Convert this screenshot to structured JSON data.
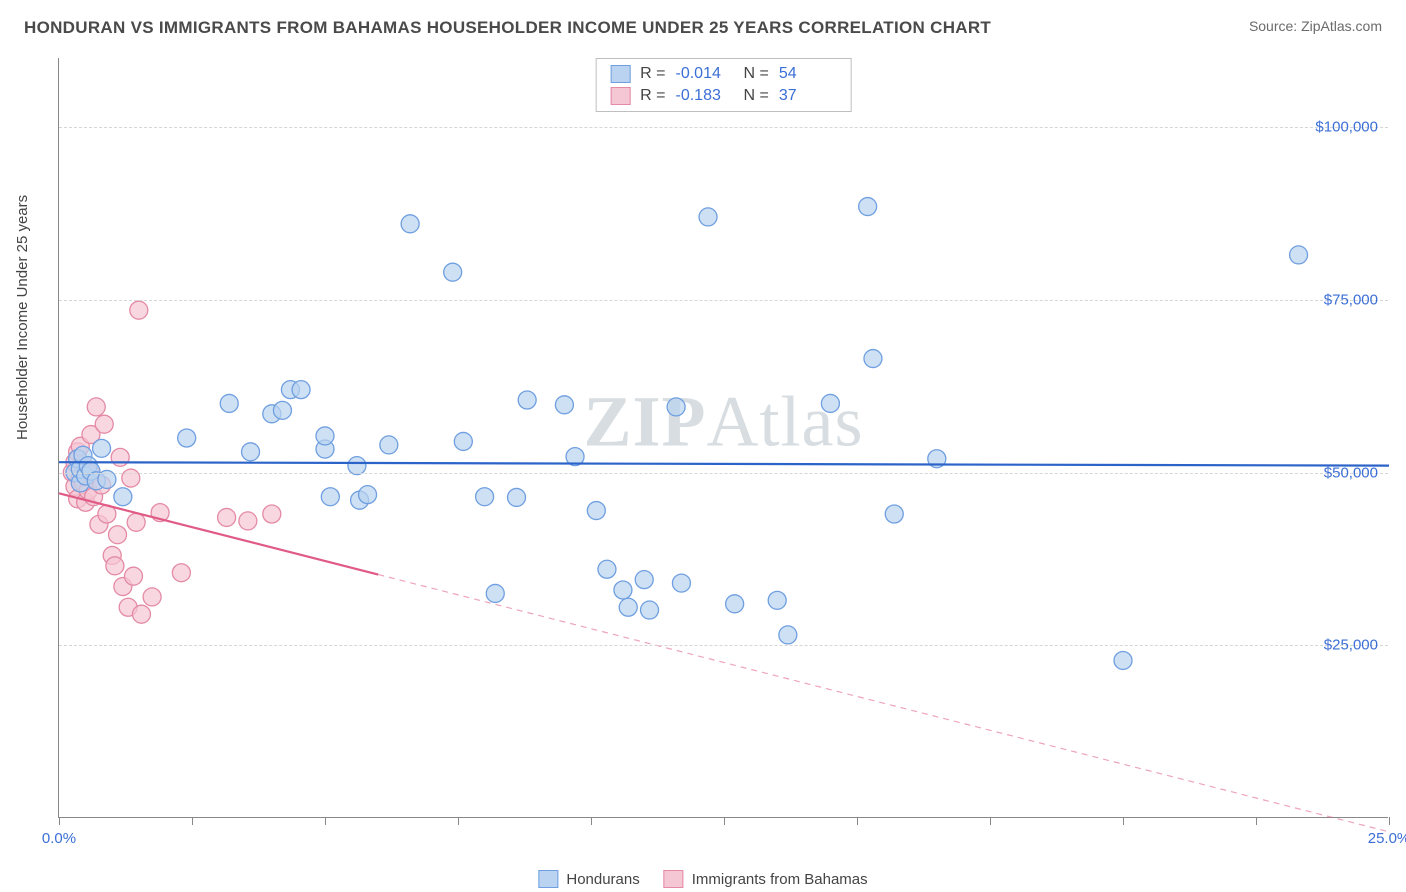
{
  "header": {
    "title": "HONDURAN VS IMMIGRANTS FROM BAHAMAS HOUSEHOLDER INCOME UNDER 25 YEARS CORRELATION CHART",
    "source": "Source: ZipAtlas.com"
  },
  "watermark": {
    "zip": "ZIP",
    "atlas": "Atlas"
  },
  "chart": {
    "type": "scatter",
    "background_color": "#ffffff",
    "grid_color": "#d6d6d6",
    "axis_color": "#888888",
    "ylabel": "Householder Income Under 25 years",
    "ylabel_fontsize": 15,
    "ylabel_color": "#444444",
    "xlim": [
      0,
      25
    ],
    "ylim": [
      0,
      110000
    ],
    "yticks": [
      {
        "v": 25000,
        "label": "$25,000"
      },
      {
        "v": 50000,
        "label": "$50,000"
      },
      {
        "v": 75000,
        "label": "$75,000"
      },
      {
        "v": 100000,
        "label": "$100,000"
      }
    ],
    "xticks": [
      0,
      2.5,
      5,
      7.5,
      10,
      12.5,
      15,
      17.5,
      20,
      22.5,
      25
    ],
    "xtick_labels": [
      {
        "v": 0,
        "label": "0.0%"
      },
      {
        "v": 25,
        "label": "25.0%"
      }
    ],
    "tick_label_color": "#3b6fd6",
    "series": [
      {
        "name": "Hondurans",
        "fill_color": "#b9d3f0",
        "stroke_color": "#6f9fe0",
        "line_color": "#2b63c9",
        "marker_radius": 9,
        "marker_opacity": 0.7,
        "R": "-0.014",
        "N": "54",
        "trend": {
          "x1": 0,
          "y1": 51500,
          "x2": 25,
          "y2": 51000,
          "dashed": false,
          "width": 2.2
        },
        "points": [
          [
            0.3,
            50000
          ],
          [
            0.35,
            52000
          ],
          [
            0.4,
            48500
          ],
          [
            0.4,
            50500
          ],
          [
            0.45,
            52500
          ],
          [
            0.5,
            49500
          ],
          [
            0.55,
            51000
          ],
          [
            0.6,
            50200
          ],
          [
            0.7,
            48800
          ],
          [
            0.8,
            53500
          ],
          [
            0.9,
            49000
          ],
          [
            1.2,
            46500
          ],
          [
            2.4,
            55000
          ],
          [
            3.2,
            60000
          ],
          [
            3.6,
            53000
          ],
          [
            4.0,
            58500
          ],
          [
            4.2,
            59000
          ],
          [
            4.35,
            62000
          ],
          [
            4.55,
            62000
          ],
          [
            5.0,
            53400
          ],
          [
            5.0,
            55300
          ],
          [
            5.1,
            46500
          ],
          [
            5.6,
            51000
          ],
          [
            5.65,
            46000
          ],
          [
            5.8,
            46800
          ],
          [
            6.2,
            54000
          ],
          [
            6.6,
            86000
          ],
          [
            7.4,
            79000
          ],
          [
            7.6,
            54500
          ],
          [
            8.0,
            46500
          ],
          [
            8.2,
            32500
          ],
          [
            8.6,
            46400
          ],
          [
            8.8,
            60500
          ],
          [
            9.5,
            59800
          ],
          [
            9.7,
            52300
          ],
          [
            10.1,
            44500
          ],
          [
            10.3,
            36000
          ],
          [
            10.6,
            33000
          ],
          [
            10.7,
            30500
          ],
          [
            11.0,
            34500
          ],
          [
            11.1,
            30100
          ],
          [
            11.6,
            59500
          ],
          [
            11.7,
            34000
          ],
          [
            12.2,
            87000
          ],
          [
            12.7,
            31000
          ],
          [
            13.5,
            31500
          ],
          [
            13.7,
            26500
          ],
          [
            14.5,
            60000
          ],
          [
            15.2,
            88500
          ],
          [
            15.3,
            66500
          ],
          [
            15.7,
            44000
          ],
          [
            16.5,
            52000
          ],
          [
            20.0,
            22800
          ],
          [
            23.3,
            81500
          ]
        ]
      },
      {
        "name": "Immigrants from Bahamas",
        "fill_color": "#f5c6d3",
        "stroke_color": "#e48aa5",
        "line_color": "#e05a86",
        "marker_radius": 9,
        "marker_opacity": 0.7,
        "R": "-0.183",
        "N": "37",
        "trend": {
          "x1": 0,
          "y1": 47000,
          "x2": 25,
          "y2": -2000,
          "dashed_after_x": 6.0,
          "width": 2.2
        },
        "points": [
          [
            0.25,
            50000
          ],
          [
            0.3,
            51500
          ],
          [
            0.3,
            48000
          ],
          [
            0.35,
            53000
          ],
          [
            0.35,
            46200
          ],
          [
            0.4,
            49300
          ],
          [
            0.4,
            53800
          ],
          [
            0.45,
            48600
          ],
          [
            0.45,
            51100
          ],
          [
            0.5,
            45700
          ],
          [
            0.5,
            50400
          ],
          [
            0.55,
            47400
          ],
          [
            0.6,
            49800
          ],
          [
            0.6,
            55500
          ],
          [
            0.65,
            46500
          ],
          [
            0.7,
            59500
          ],
          [
            0.75,
            42500
          ],
          [
            0.8,
            48200
          ],
          [
            0.85,
            57000
          ],
          [
            0.9,
            44000
          ],
          [
            1.0,
            38000
          ],
          [
            1.05,
            36500
          ],
          [
            1.1,
            41000
          ],
          [
            1.15,
            52200
          ],
          [
            1.2,
            33500
          ],
          [
            1.3,
            30500
          ],
          [
            1.35,
            49200
          ],
          [
            1.4,
            35000
          ],
          [
            1.45,
            42800
          ],
          [
            1.5,
            73500
          ],
          [
            1.55,
            29500
          ],
          [
            1.75,
            32000
          ],
          [
            1.9,
            44200
          ],
          [
            2.3,
            35500
          ],
          [
            3.15,
            43500
          ],
          [
            3.55,
            43000
          ],
          [
            4.0,
            44000
          ]
        ]
      }
    ],
    "legend_bottom": [
      {
        "label": "Hondurans",
        "fill": "#b9d3f0",
        "stroke": "#6f9fe0"
      },
      {
        "label": "Immigrants from Bahamas",
        "fill": "#f5c6d3",
        "stroke": "#e48aa5"
      }
    ],
    "corr_box": {
      "border_color": "#bfbfbf",
      "rows": [
        {
          "swatch_fill": "#b9d3f0",
          "swatch_stroke": "#6f9fe0",
          "R_label": "R =",
          "R": "-0.014",
          "N_label": "N =",
          "N": "54"
        },
        {
          "swatch_fill": "#f5c6d3",
          "swatch_stroke": "#e48aa5",
          "R_label": "R =",
          "R": "-0.183",
          "N_label": "N =",
          "N": "37"
        }
      ]
    }
  }
}
